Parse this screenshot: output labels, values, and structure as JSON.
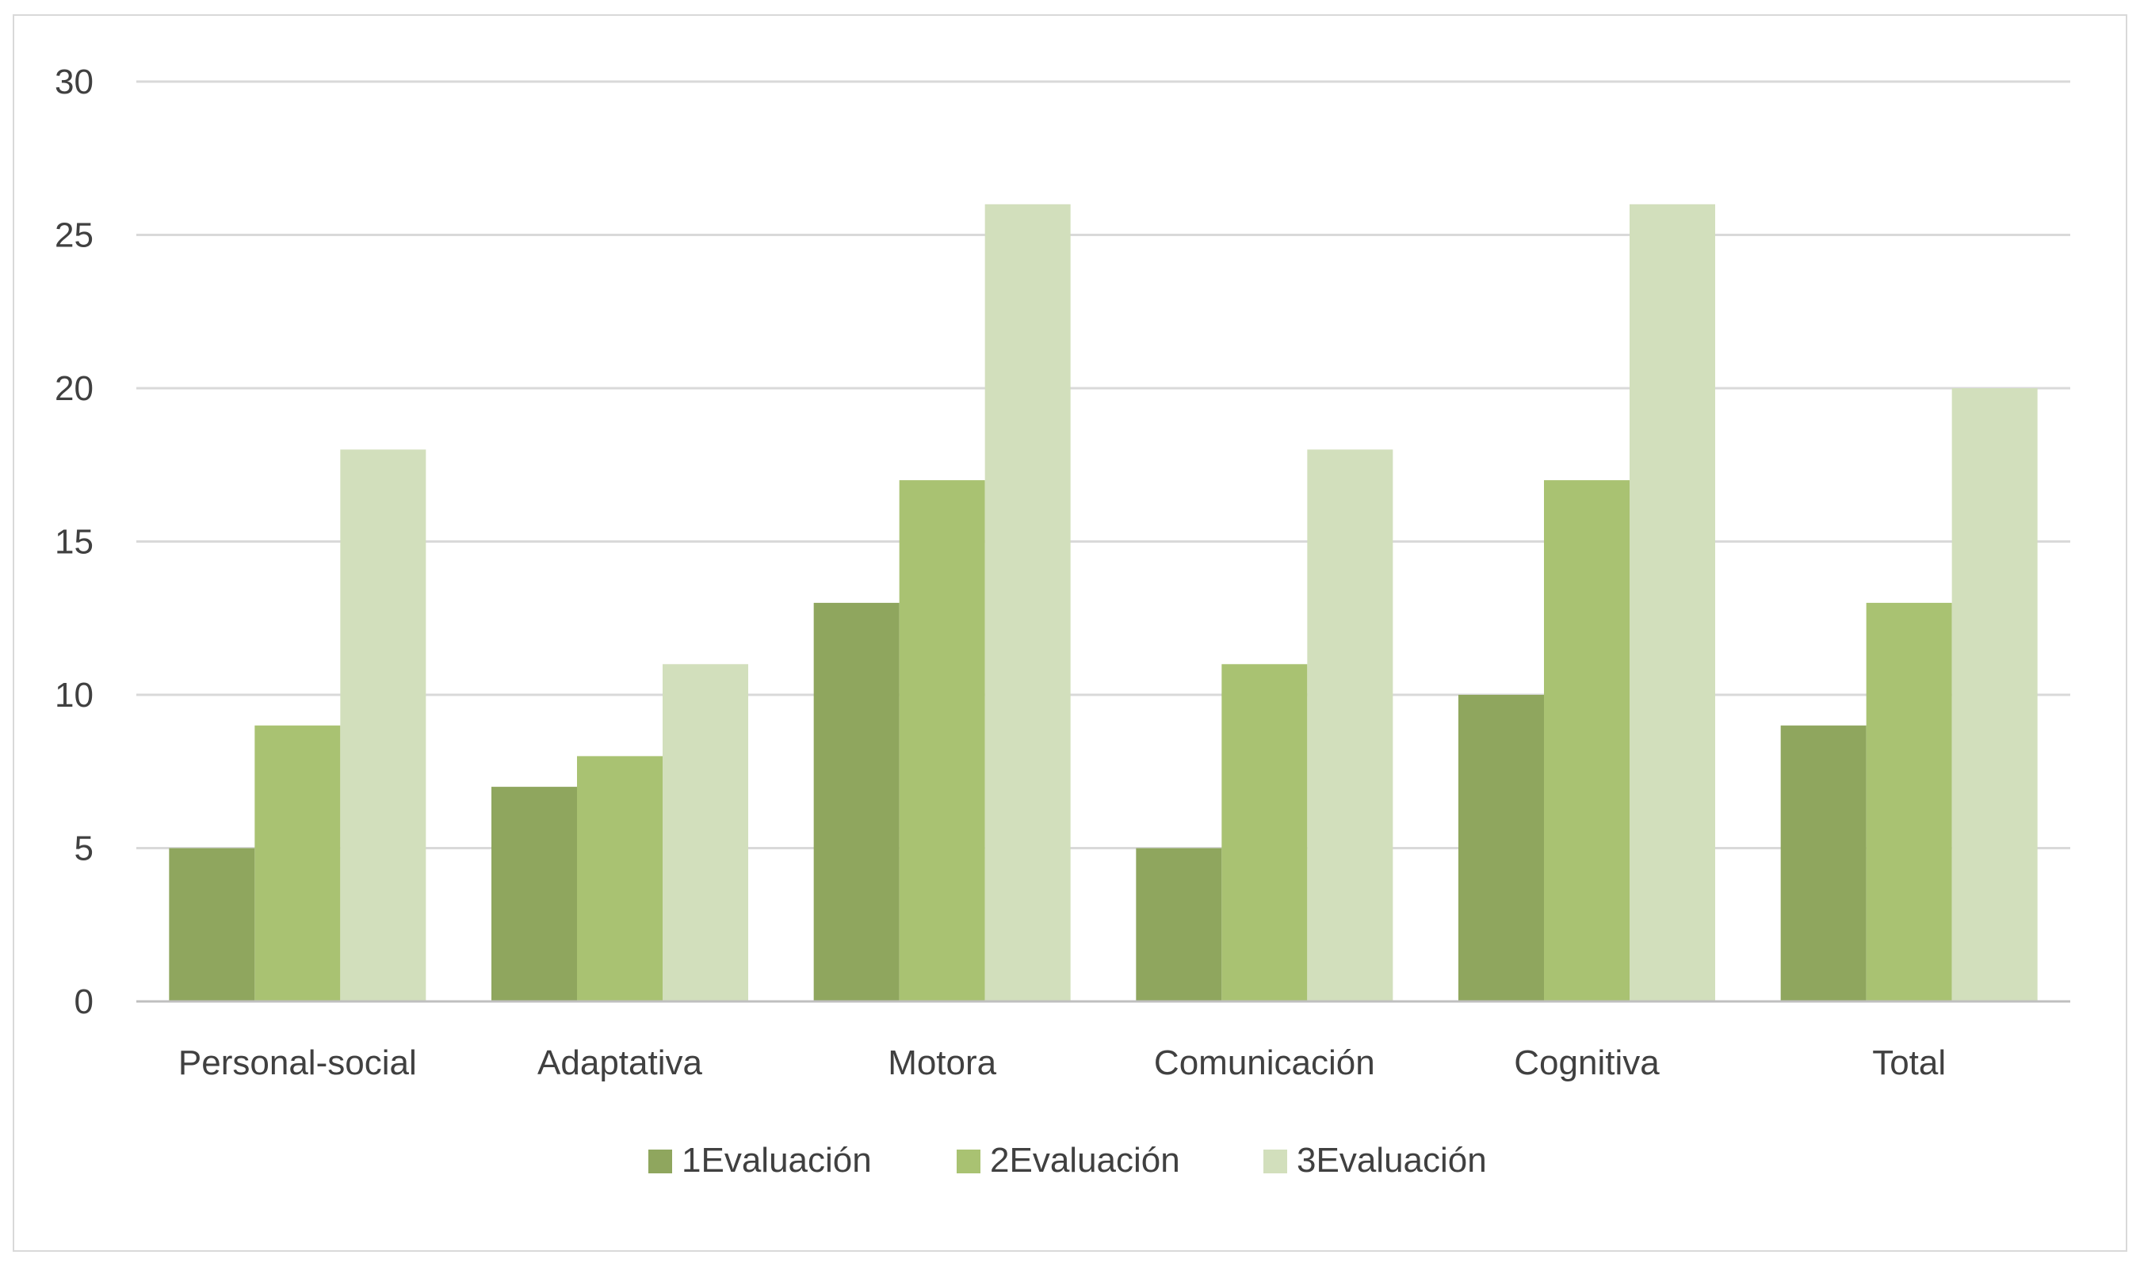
{
  "chart_data": {
    "type": "bar",
    "categories": [
      "Personal-social",
      "Adaptativa",
      "Motora",
      "Comunicación",
      "Cognitiva",
      "Total"
    ],
    "series": [
      {
        "name": "1Evaluación",
        "values": [
          5,
          7,
          13,
          5,
          10,
          9
        ],
        "color": "#8fa65e"
      },
      {
        "name": "2Evaluación",
        "values": [
          9,
          8,
          17,
          11,
          17,
          13
        ],
        "color": "#a9c272"
      },
      {
        "name": "3Evaluación",
        "values": [
          18,
          11,
          26,
          18,
          26,
          20
        ],
        "color": "#d2dfbc"
      }
    ],
    "yticks": [
      "0",
      "5",
      "10",
      "15",
      "20",
      "25",
      "30"
    ],
    "ylim": [
      0,
      30
    ],
    "grid": true,
    "legend": "bottom-center"
  }
}
